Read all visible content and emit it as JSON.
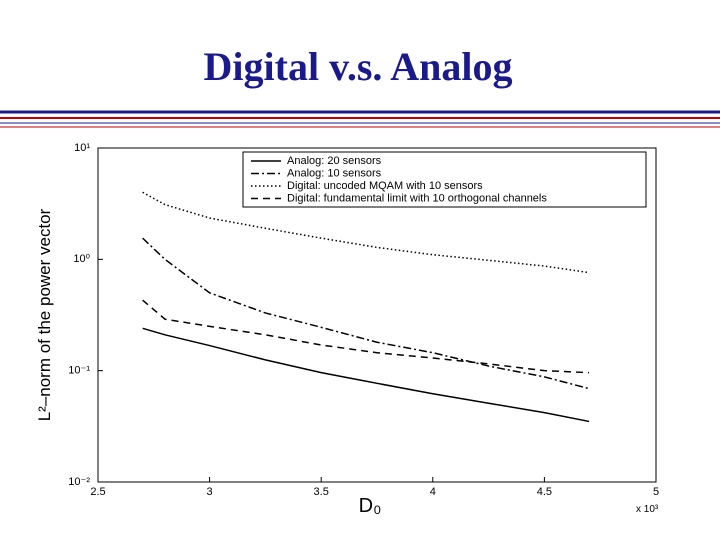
{
  "slide_title": "Digital v.s. Analog",
  "chart_data": {
    "type": "line",
    "ylabel": "L²–norm of the power vector",
    "xlabel": "D₀",
    "x_multiplier": "x 10³",
    "x": [
      2.7,
      2.8,
      3.0,
      3.25,
      3.5,
      3.75,
      4.0,
      4.25,
      4.5,
      4.7
    ],
    "series": [
      {
        "name": "Analog: 20 sensors",
        "color": "#000000",
        "style": "solid",
        "values": [
          0.24,
          0.21,
          0.168,
          0.125,
          0.096,
          0.077,
          0.062,
          0.051,
          0.042,
          0.035
        ]
      },
      {
        "name": "Analog: 10 sensors",
        "color": "#000000",
        "style": "dashdot",
        "values": [
          1.55,
          1.0,
          0.5,
          0.33,
          0.245,
          0.18,
          0.145,
          0.11,
          0.088,
          0.069
        ]
      },
      {
        "name": "Digital: uncoded MQAM with 10 sensors",
        "color": "#000000",
        "style": "dotted",
        "values": [
          4.0,
          3.1,
          2.35,
          1.9,
          1.55,
          1.28,
          1.1,
          0.98,
          0.87,
          0.76
        ]
      },
      {
        "name": "Digital: fundamental limit with 10 orthogonal channels",
        "color": "#000000",
        "style": "dashed",
        "values": [
          0.43,
          0.29,
          0.25,
          0.21,
          0.17,
          0.145,
          0.13,
          0.115,
          0.1,
          0.096
        ]
      }
    ],
    "xlim": [
      2.5,
      5
    ],
    "xticks": [
      2.5,
      3,
      3.5,
      4,
      4.5,
      5
    ],
    "ylim": [
      0.01,
      10
    ],
    "ylog": true,
    "yticks": [
      {
        "value": 10,
        "label": "10¹"
      },
      {
        "value": 1,
        "label": "10⁰"
      },
      {
        "value": 0.1,
        "label": "10⁻¹"
      },
      {
        "value": 0.01,
        "label": "10⁻²"
      }
    ],
    "legend": "upper right"
  }
}
